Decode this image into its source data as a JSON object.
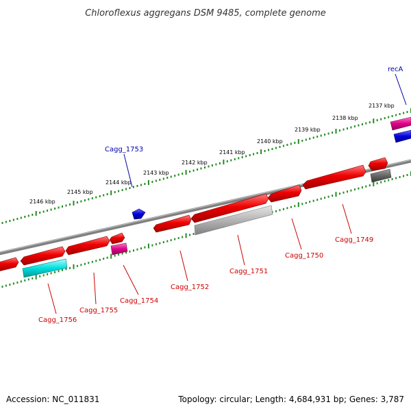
{
  "title": "Chloroflexus aggregans DSM 9485, complete genome",
  "footer": {
    "accession": "Accession: NC_011831",
    "summary": "Topology: circular; Length: 4,684,931 bp; Genes: 3,787"
  },
  "kbp_ticks": [
    "2137 kbp",
    "2138 kbp",
    "2139 kbp",
    "2140 kbp",
    "2141 kbp",
    "2142 kbp",
    "2143 kbp",
    "2144 kbp",
    "2145 kbp",
    "2146 kbp"
  ],
  "genes_red": [
    "Cagg_1749",
    "Cagg_1750",
    "Cagg_1751",
    "Cagg_1752",
    "Cagg_1754",
    "Cagg_1755",
    "Cagg_1756"
  ],
  "genes_blue": [
    "recA",
    "Cagg_1753"
  ],
  "colors": {
    "cds_red": "#ee0000",
    "rna_blue": "#0000dd",
    "pink": "#dd0088",
    "cyan": "#00dddd",
    "gray_light": "#b0b0b0",
    "gray_dark": "#666666",
    "backbone": "#888888",
    "tick_green": "#228b22"
  }
}
